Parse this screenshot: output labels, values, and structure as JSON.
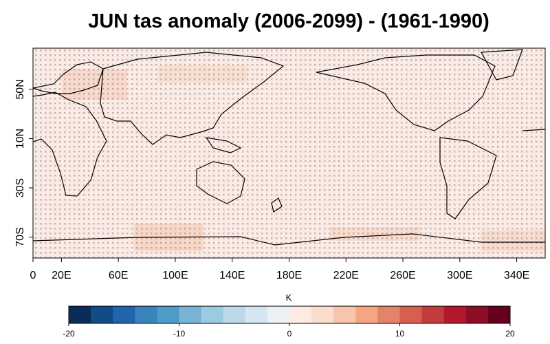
{
  "title": "JUN tas anomaly (2006-2099) - (1961-1990)",
  "map": {
    "lon_range": [
      0,
      360
    ],
    "lat_range": [
      -87,
      83.5
    ],
    "lon_ticks": [
      {
        "value": 0,
        "label": "0"
      },
      {
        "value": 20,
        "label": "20E"
      },
      {
        "value": 60,
        "label": "60E"
      },
      {
        "value": 100,
        "label": "100E"
      },
      {
        "value": 140,
        "label": "140E"
      },
      {
        "value": 180,
        "label": "180E"
      },
      {
        "value": 220,
        "label": "220E"
      },
      {
        "value": 260,
        "label": "260E"
      },
      {
        "value": 300,
        "label": "300E"
      },
      {
        "value": 340,
        "label": "340E"
      }
    ],
    "lat_ticks": [
      {
        "value": 50,
        "label": "50N"
      },
      {
        "value": 10,
        "label": "10N"
      },
      {
        "value": -30,
        "label": "30S"
      },
      {
        "value": -70,
        "label": "70S"
      }
    ]
  },
  "colorbar": {
    "label": "K",
    "lim": [
      -20,
      20
    ],
    "ticks": [
      -20,
      -10,
      0,
      10,
      20
    ],
    "colors": [
      "#0b2b57",
      "#134b87",
      "#2064ad",
      "#3a84bb",
      "#4f9bc8",
      "#78b2d5",
      "#9ccae1",
      "#bcd9ea",
      "#d6e6f1",
      "#ebf0f5",
      "#fbebe4",
      "#fbdccd",
      "#f7c4ac",
      "#f4a582",
      "#e5826a",
      "#d6604d",
      "#c23c3d",
      "#b2182b",
      "#8e0d26",
      "#67001f"
    ]
  }
}
